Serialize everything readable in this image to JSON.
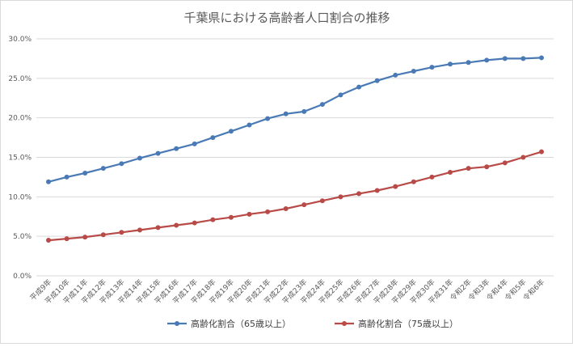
{
  "chart_data": {
    "type": "line",
    "title": "千葉県における高齢者人口割合の推移",
    "xlabel": "",
    "ylabel": "",
    "ylim": [
      0,
      30
    ],
    "yticks": [
      "0.0%",
      "5.0%",
      "10.0%",
      "15.0%",
      "20.0%",
      "25.0%",
      "30.0%"
    ],
    "grid": true,
    "legend_position": "bottom",
    "categories": [
      "平成9年",
      "平成10年",
      "平成11年",
      "平成12年",
      "平成13年",
      "平成14年",
      "平成15年",
      "平成16年",
      "平成17年",
      "平成18年",
      "平成19年",
      "平成20年",
      "平成21年",
      "平成22年",
      "平成23年",
      "平成24年",
      "平成25年",
      "平成26年",
      "平成27年",
      "平成28年",
      "平成29年",
      "平成30年",
      "平成31年",
      "令和2年",
      "令和3年",
      "令和4年",
      "令和5年",
      "令和6年"
    ],
    "series": [
      {
        "name": "高齢化割合（65歳以上）",
        "color": "#4a7ab5",
        "values": [
          11.9,
          12.5,
          13.0,
          13.6,
          14.2,
          14.9,
          15.5,
          16.1,
          16.7,
          17.5,
          18.3,
          19.1,
          19.9,
          20.5,
          20.8,
          21.7,
          22.9,
          23.9,
          24.7,
          25.4,
          25.9,
          26.4,
          26.8,
          27.0,
          27.3,
          27.5,
          27.5,
          27.6
        ]
      },
      {
        "name": "高齢化割合（75歳以上）",
        "color": "#b84a48",
        "values": [
          4.5,
          4.7,
          4.9,
          5.2,
          5.5,
          5.8,
          6.1,
          6.4,
          6.7,
          7.1,
          7.4,
          7.8,
          8.1,
          8.5,
          9.0,
          9.5,
          10.0,
          10.4,
          10.8,
          11.3,
          11.9,
          12.5,
          13.1,
          13.6,
          13.8,
          14.3,
          15.0,
          15.7
        ]
      }
    ]
  }
}
